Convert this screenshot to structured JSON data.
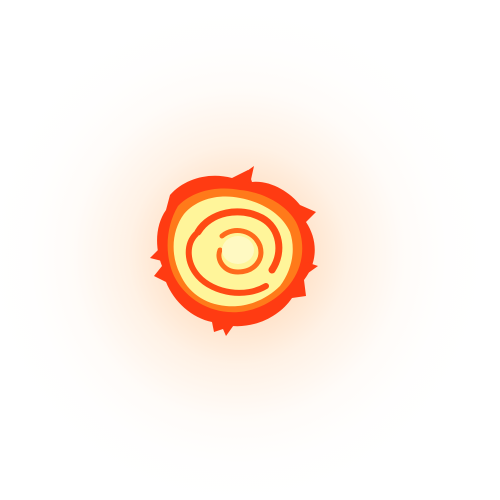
{
  "image": {
    "subject": "fireball-effect",
    "colors": {
      "background": "#ffffff",
      "glow": "#ffa050",
      "outer_flame": "#ff3b12",
      "mid_flame": "#ff7a1a",
      "core": "#fff59a"
    }
  }
}
